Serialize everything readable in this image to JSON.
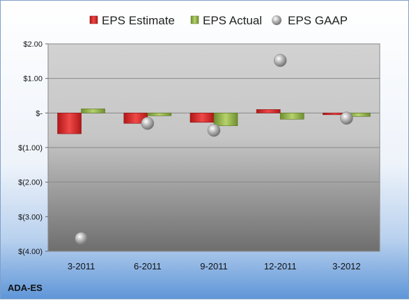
{
  "chart_data": {
    "type": "bar",
    "ticker": "ADA-ES",
    "categories": [
      "3-2011",
      "6-2011",
      "9-2011",
      "12-2011",
      "3-2012"
    ],
    "series": [
      {
        "name": "EPS Estimate",
        "kind": "bar",
        "color": "#d42a2a",
        "values": [
          -0.6,
          -0.3,
          -0.27,
          0.1,
          -0.05
        ]
      },
      {
        "name": "EPS Actual",
        "kind": "bar",
        "color": "#8fb04a",
        "values": [
          0.12,
          -0.08,
          -0.37,
          -0.18,
          -0.1
        ]
      },
      {
        "name": "EPS GAAP",
        "kind": "marker",
        "color": "#a8a8a8",
        "values": [
          -3.63,
          -0.3,
          -0.5,
          1.52,
          -0.15
        ]
      }
    ],
    "ylim": [
      -4,
      2
    ],
    "yticks": [
      2,
      1,
      0,
      -1,
      -2,
      -3,
      -4
    ],
    "ytick_labels": [
      "$2.00",
      "$1.00",
      "$-",
      "$(1.00)",
      "$(2.00)",
      "$(3.00)",
      "$(4.00)"
    ],
    "grid": true,
    "legend": "top"
  }
}
